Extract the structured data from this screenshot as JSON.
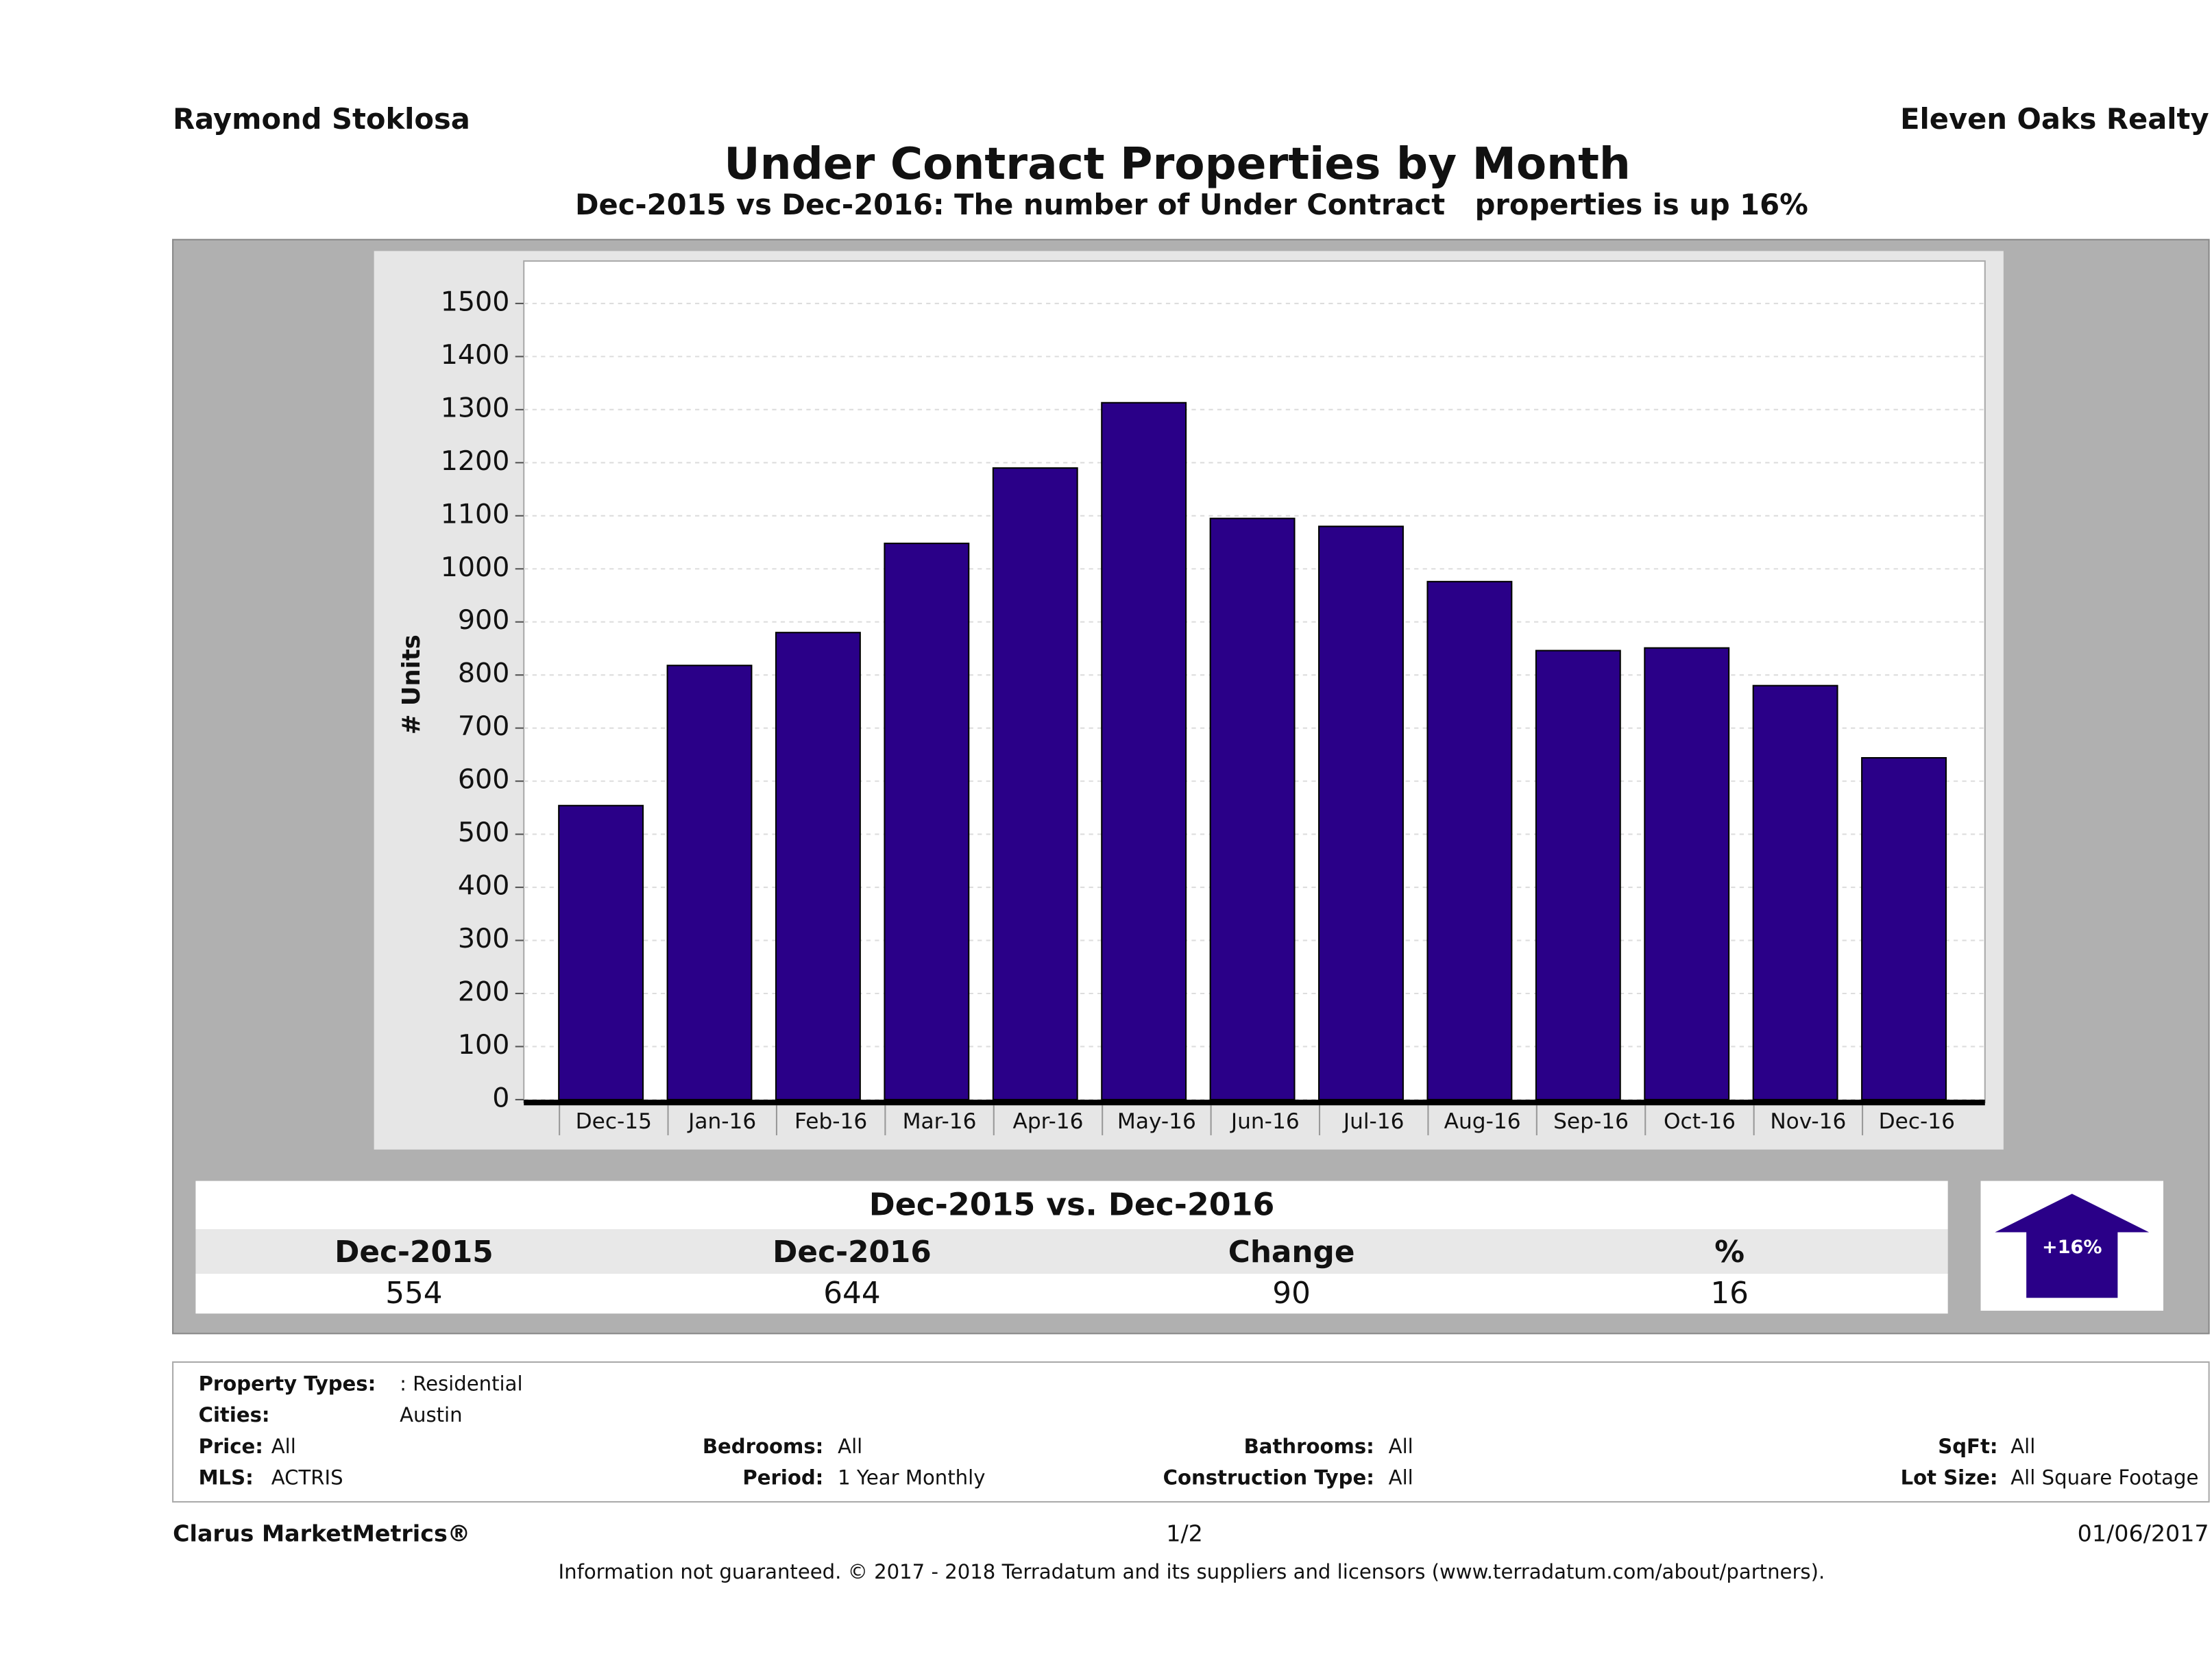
{
  "header": {
    "agent": "Raymond Stoklosa",
    "company": "Eleven Oaks Realty"
  },
  "chart_data": {
    "type": "bar",
    "title": "Under Contract Properties by Month",
    "subtitle": "Dec-2015 vs Dec-2016: The number of Under Contract   properties is up 16%",
    "y_label": "# Units",
    "categories": [
      "Dec-15",
      "Jan-16",
      "Feb-16",
      "Mar-16",
      "Apr-16",
      "May-16",
      "Jun-16",
      "Jul-16",
      "Aug-16",
      "Sep-16",
      "Oct-16",
      "Nov-16",
      "Dec-16"
    ],
    "values": [
      554,
      818,
      880,
      1048,
      1190,
      1313,
      1095,
      1080,
      976,
      846,
      851,
      780,
      644
    ],
    "color": "#2a0088",
    "ylim": [
      0,
      1580
    ],
    "yticks": [
      0,
      100,
      200,
      300,
      400,
      500,
      600,
      700,
      800,
      900,
      1000,
      1100,
      1200,
      1300,
      1400,
      1500
    ],
    "grid": true
  },
  "summary": {
    "title": "Dec-2015 vs. Dec-2016",
    "headers": [
      "Dec-2015",
      "Dec-2016",
      "Change",
      "%"
    ],
    "values": [
      554,
      644,
      90,
      16
    ],
    "badge": "+16%"
  },
  "filters": [
    {
      "label": "Property Types:",
      "value": ": Residential"
    },
    {
      "label": "Cities:",
      "value": "Austin"
    },
    {
      "label": "Price:",
      "value": "All"
    },
    {
      "label": "Bedrooms:",
      "value": "All"
    },
    {
      "label": "Bathrooms:",
      "value": "All"
    },
    {
      "label": "SqFt:",
      "value": "All"
    },
    {
      "label": "MLS:",
      "value": "ACTRIS"
    },
    {
      "label": "Period:",
      "value": "1 Year Monthly"
    },
    {
      "label": "Construction Type:",
      "value": "All"
    },
    {
      "label": "Lot Size:",
      "value": "All Square Footage"
    }
  ],
  "footer": {
    "brand": "Clarus MarketMetrics®",
    "page": "1/2",
    "date": "01/06/2017",
    "disclaimer": "Information not guaranteed. © 2017 - 2018 Terradatum and its suppliers and licensors (www.terradatum.com/about/partners)."
  }
}
